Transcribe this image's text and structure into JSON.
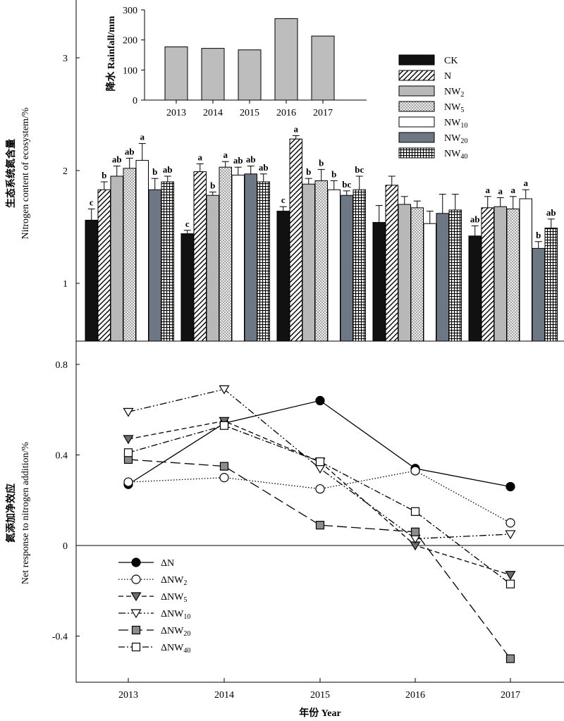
{
  "colors": {
    "CK": "#111111",
    "N": "#ffffff",
    "NW2": "#b8b8b8",
    "NW5": "#e4e4e4",
    "NW10": "#ffffff",
    "NW20": "#6e7884",
    "NW40": "#ffffff",
    "rainfall": "#bdbdbd"
  },
  "chart_data": [
    {
      "type": "bar",
      "title": "",
      "xlabel": "",
      "ylabel_cn": "生态系统氮含量",
      "ylabel_en": "Nitrogen content of ecosystem/%",
      "categories": [
        "2013",
        "2014",
        "2015",
        "2016",
        "2017"
      ],
      "ylim": [
        0.5,
        3.5
      ],
      "yticks": [
        1,
        2,
        3
      ],
      "legend_position": "right",
      "series": [
        {
          "name": "CK",
          "name_sub": "",
          "values": [
            1.56,
            1.44,
            1.64,
            1.54,
            1.42
          ],
          "errors": [
            0.1,
            0.03,
            0.04,
            0.15,
            0.09
          ],
          "letters": [
            "c",
            "c",
            "c",
            "",
            "ab"
          ],
          "pattern": "solid-black"
        },
        {
          "name": "N",
          "name_sub": "",
          "values": [
            1.83,
            1.99,
            2.28,
            1.87,
            1.67
          ],
          "errors": [
            0.07,
            0.07,
            0.03,
            0.08,
            0.1
          ],
          "letters": [
            "b",
            "a",
            "a",
            "",
            "a"
          ],
          "pattern": "hatch"
        },
        {
          "name": "NW",
          "name_sub": "2",
          "values": [
            1.95,
            1.78,
            1.88,
            1.7,
            1.68
          ],
          "errors": [
            0.09,
            0.03,
            0.05,
            0.07,
            0.08
          ],
          "letters": [
            "ab",
            "b",
            "b",
            "",
            "a"
          ],
          "pattern": "solid-gray"
        },
        {
          "name": "NW",
          "name_sub": "5",
          "values": [
            2.02,
            2.03,
            1.91,
            1.67,
            1.66
          ],
          "errors": [
            0.09,
            0.05,
            0.1,
            0.06,
            0.11
          ],
          "letters": [
            "ab",
            "a",
            "b",
            "",
            "a"
          ],
          "pattern": "dots"
        },
        {
          "name": "NW",
          "name_sub": "10",
          "values": [
            2.09,
            1.96,
            1.83,
            1.53,
            1.75
          ],
          "errors": [
            0.15,
            0.07,
            0.08,
            0.11,
            0.08
          ],
          "letters": [
            "a",
            "ab",
            "b",
            "",
            "a"
          ],
          "pattern": "white"
        },
        {
          "name": "NW",
          "name_sub": "20",
          "values": [
            1.83,
            1.97,
            1.78,
            1.62,
            1.31
          ],
          "errors": [
            0.1,
            0.07,
            0.04,
            0.17,
            0.06
          ],
          "letters": [
            "b",
            "ab",
            "bc",
            "",
            "b"
          ],
          "pattern": "solid-slate"
        },
        {
          "name": "NW",
          "name_sub": "40",
          "values": [
            1.9,
            1.9,
            1.83,
            1.65,
            1.49
          ],
          "errors": [
            0.05,
            0.07,
            0.12,
            0.14,
            0.08
          ],
          "letters": [
            "ab",
            "ab",
            "bc",
            "",
            "ab"
          ],
          "pattern": "grid"
        }
      ]
    },
    {
      "type": "bar",
      "title": "",
      "ylabel": "降水 Rainfall/mm",
      "categories": [
        "2013",
        "2014",
        "2015",
        "2016",
        "2017"
      ],
      "values": [
        177,
        172,
        167,
        271,
        213
      ],
      "ylim": [
        0,
        300
      ],
      "yticks": [
        0,
        100,
        200,
        300
      ]
    },
    {
      "type": "line",
      "ylabel_cn": "氮添加净效应",
      "ylabel_en": "Net response to nitrogen addition/%",
      "xlabel": "年份 Year",
      "x": [
        "2013",
        "2014",
        "2015",
        "2016",
        "2017"
      ],
      "ylim": [
        -0.6,
        0.9
      ],
      "yticks": [
        0.8,
        0.4,
        0,
        -0.4
      ],
      "ytick_labels": [
        "0.8",
        "0.4",
        "0",
        "-0.4"
      ],
      "legend_position": "bottom-left",
      "series": [
        {
          "name": "ΔN",
          "name_sub": "",
          "values": [
            0.27,
            0.54,
            0.64,
            0.34,
            0.26
          ],
          "marker": "circle-filled",
          "dash": ""
        },
        {
          "name": "ΔNW",
          "name_sub": "2",
          "values": [
            0.28,
            0.3,
            0.25,
            0.33,
            0.1
          ],
          "marker": "circle-open",
          "dash": "1.5,2.5"
        },
        {
          "name": "ΔNW",
          "name_sub": "5",
          "values": [
            0.47,
            0.55,
            0.37,
            0.0,
            -0.13
          ],
          "marker": "triangle-down-filled",
          "dash": "7,4"
        },
        {
          "name": "ΔNW",
          "name_sub": "10",
          "values": [
            0.59,
            0.69,
            0.34,
            0.03,
            0.05
          ],
          "marker": "triangle-down-open",
          "dash": "10,3,2,3,2,3"
        },
        {
          "name": "ΔNW",
          "name_sub": "20",
          "values": [
            0.38,
            0.35,
            0.09,
            0.06,
            -0.5
          ],
          "marker": "square-filled",
          "dash": "14,6"
        },
        {
          "name": "ΔNW",
          "name_sub": "40",
          "values": [
            0.41,
            0.53,
            0.37,
            0.15,
            -0.17
          ],
          "marker": "square-open",
          "dash": "9,3,2,3"
        }
      ]
    }
  ]
}
